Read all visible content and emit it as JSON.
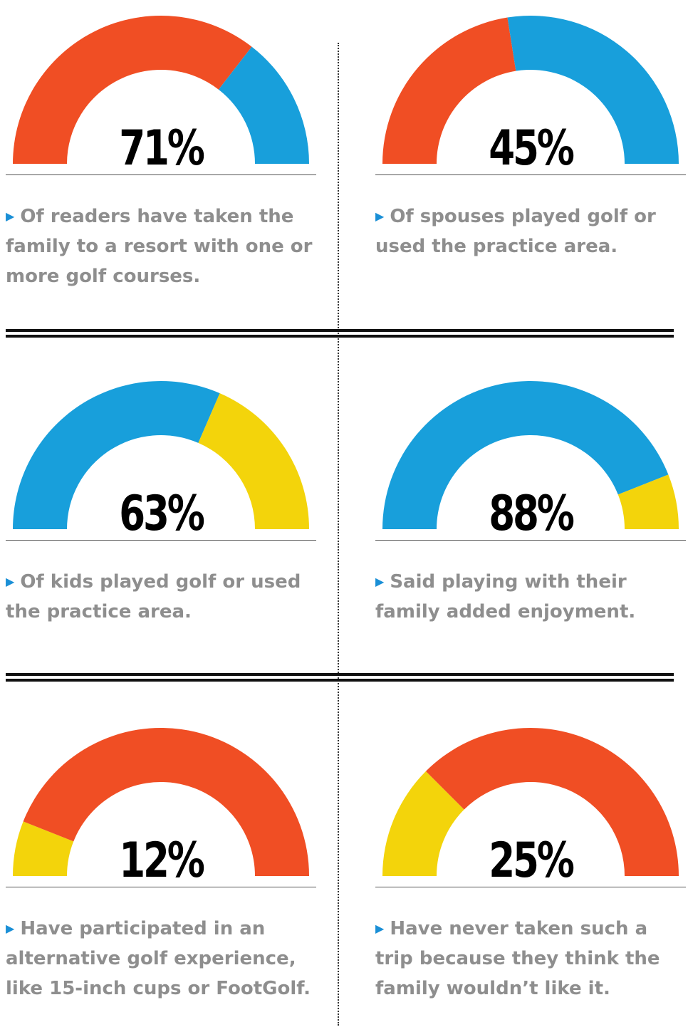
{
  "colors": {
    "orange": "#f04e24",
    "blue": "#189fdb",
    "yellow": "#f3d40b"
  },
  "chart_data": [
    {
      "type": "gauge",
      "value": 71,
      "label": "71%",
      "caption": "Of readers have taken the family to a resort with one or more golf courses.",
      "colors": [
        "#f04e24",
        "#189fdb"
      ]
    },
    {
      "type": "gauge",
      "value": 45,
      "label": "45%",
      "caption": "Of spouses played golf or used the practice area.",
      "colors": [
        "#f04e24",
        "#189fdb"
      ]
    },
    {
      "type": "gauge",
      "value": 63,
      "label": "63%",
      "caption": "Of kids played golf or used the practice area.",
      "colors": [
        "#189fdb",
        "#f3d40b"
      ]
    },
    {
      "type": "gauge",
      "value": 88,
      "label": "88%",
      "caption": "Said playing with their family added enjoyment.",
      "colors": [
        "#189fdb",
        "#f3d40b"
      ]
    },
    {
      "type": "gauge",
      "value": 12,
      "label": "12%",
      "caption": "Have participated in an alternative golf experience, like 15-inch cups or FootGolf.",
      "colors": [
        "#f3d40b",
        "#f04e24"
      ]
    },
    {
      "type": "gauge",
      "value": 25,
      "label": "25%",
      "caption": "Have never taken such a trip because they think the family wouldn’t like it.",
      "colors": [
        "#f3d40b",
        "#f04e24"
      ]
    }
  ]
}
